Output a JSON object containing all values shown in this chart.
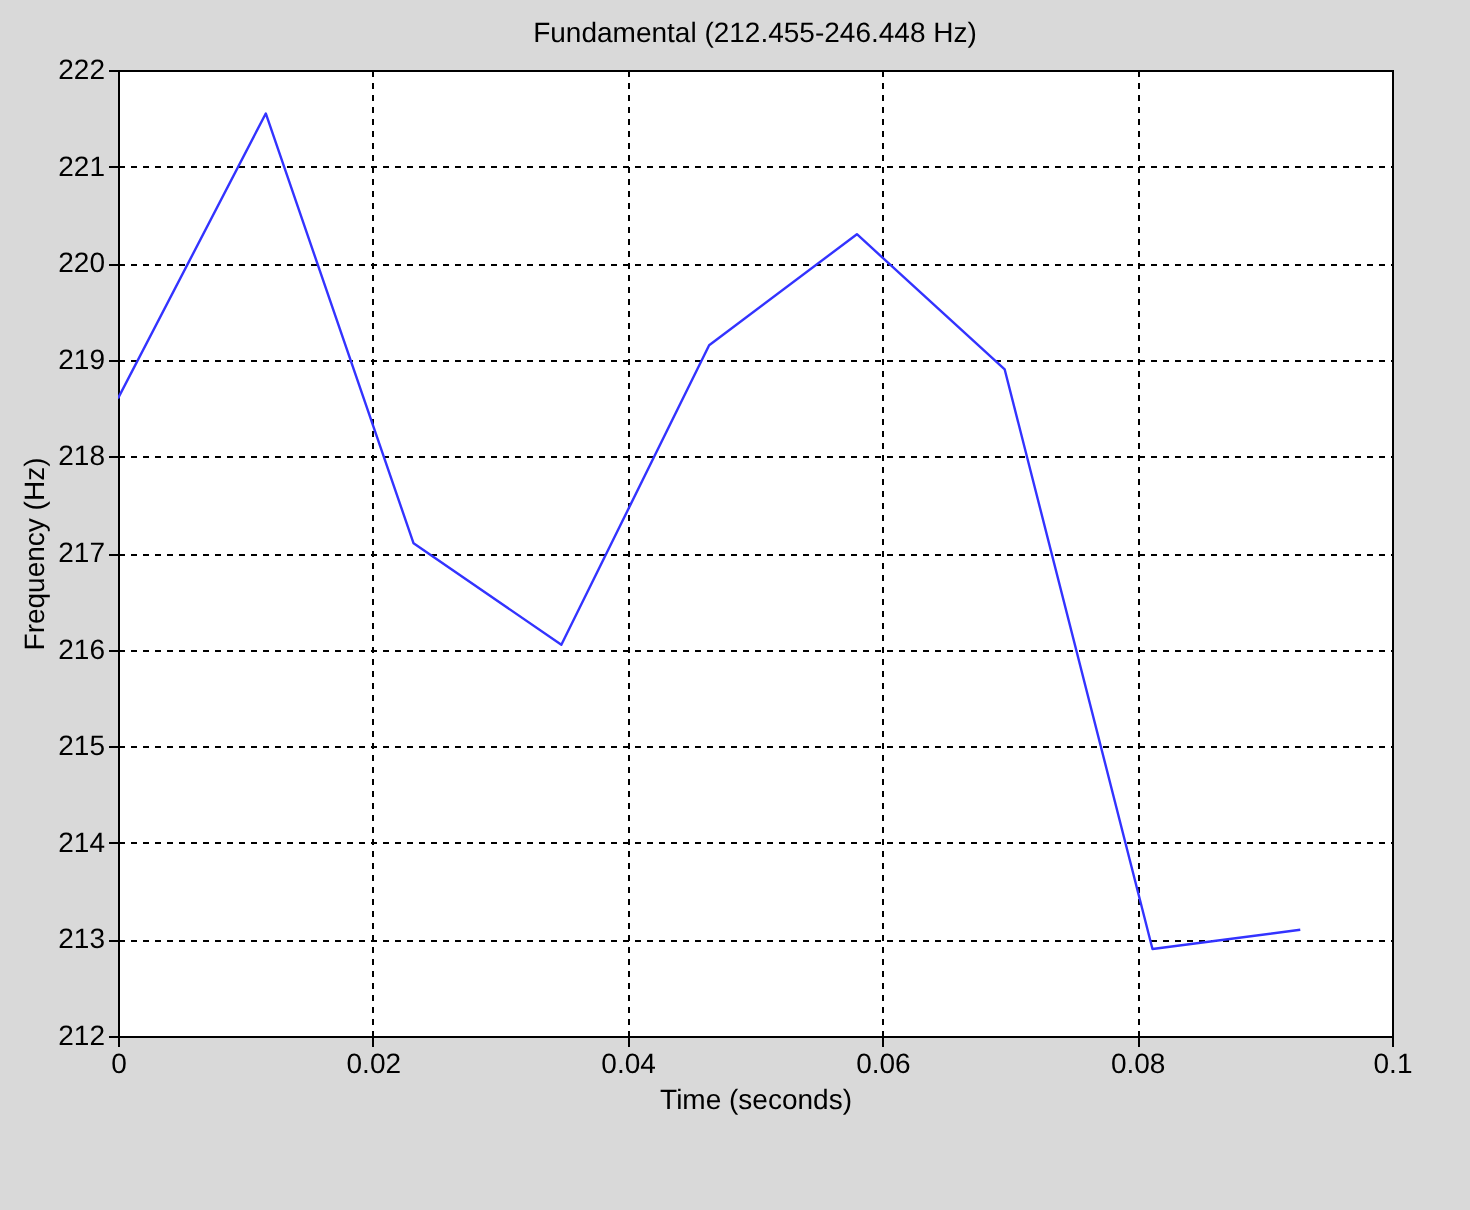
{
  "chart_data": {
    "type": "line",
    "title": "Fundamental (212.455-246.448 Hz)",
    "xlabel": "Time (seconds)",
    "ylabel": "Frequency (Hz)",
    "x": [
      0,
      0.0116,
      0.0232,
      0.0348,
      0.0464,
      0.058,
      0.0696,
      0.0812,
      0.0928
    ],
    "series": [
      {
        "color": "#3333ff",
        "values": [
          218.6,
          221.55,
          217.1,
          216.05,
          219.15,
          220.3,
          218.9,
          212.9,
          213.1
        ]
      }
    ],
    "xlim": [
      0,
      0.1
    ],
    "xticks": [
      0,
      0.02,
      0.04,
      0.06,
      0.08,
      0.1
    ],
    "ylim": [
      212,
      222
    ],
    "yticks": [
      212,
      213,
      214,
      215,
      216,
      217,
      218,
      219,
      220,
      221,
      222
    ],
    "grid": true,
    "line_style": "solid",
    "marker": "none"
  }
}
